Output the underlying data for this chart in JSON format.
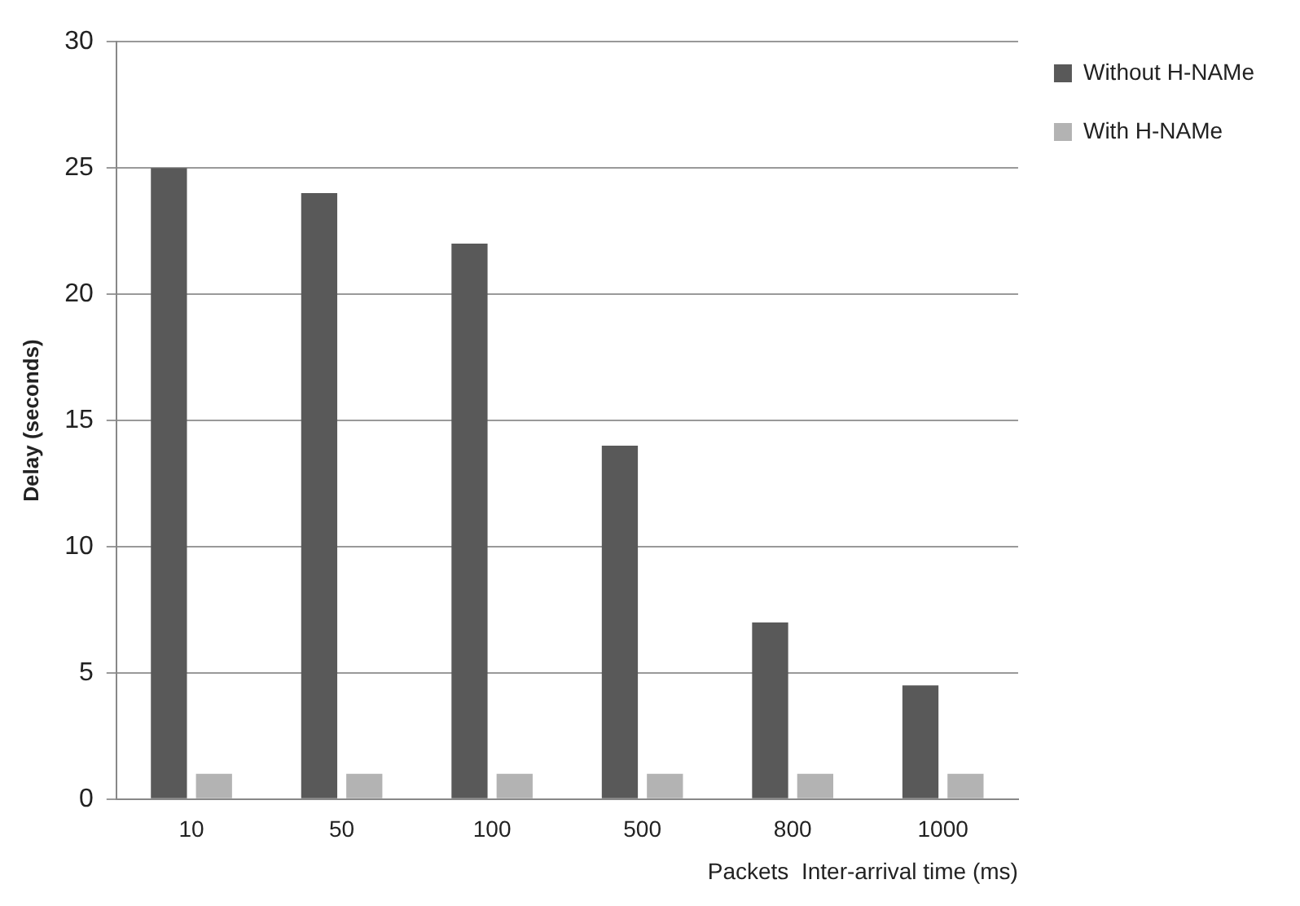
{
  "chart_data": {
    "type": "bar",
    "categories": [
      "10",
      "50",
      "100",
      "500",
      "800",
      "1000"
    ],
    "series": [
      {
        "name": "Without H-NAMe",
        "color": "#595959",
        "values": [
          25,
          24,
          22,
          14,
          7,
          4.5
        ]
      },
      {
        "name": "With H-NAMe",
        "color": "#b3b3b3",
        "values": [
          1,
          1,
          1,
          1,
          1,
          1
        ]
      }
    ],
    "xlabel": "Packets  Inter-arrival time (ms)",
    "ylabel": "Delay (seconds)",
    "ylim": [
      0,
      30
    ],
    "yticks": [
      0,
      5,
      10,
      15,
      20,
      25,
      30
    ],
    "grid": "y",
    "legend": "top right"
  }
}
